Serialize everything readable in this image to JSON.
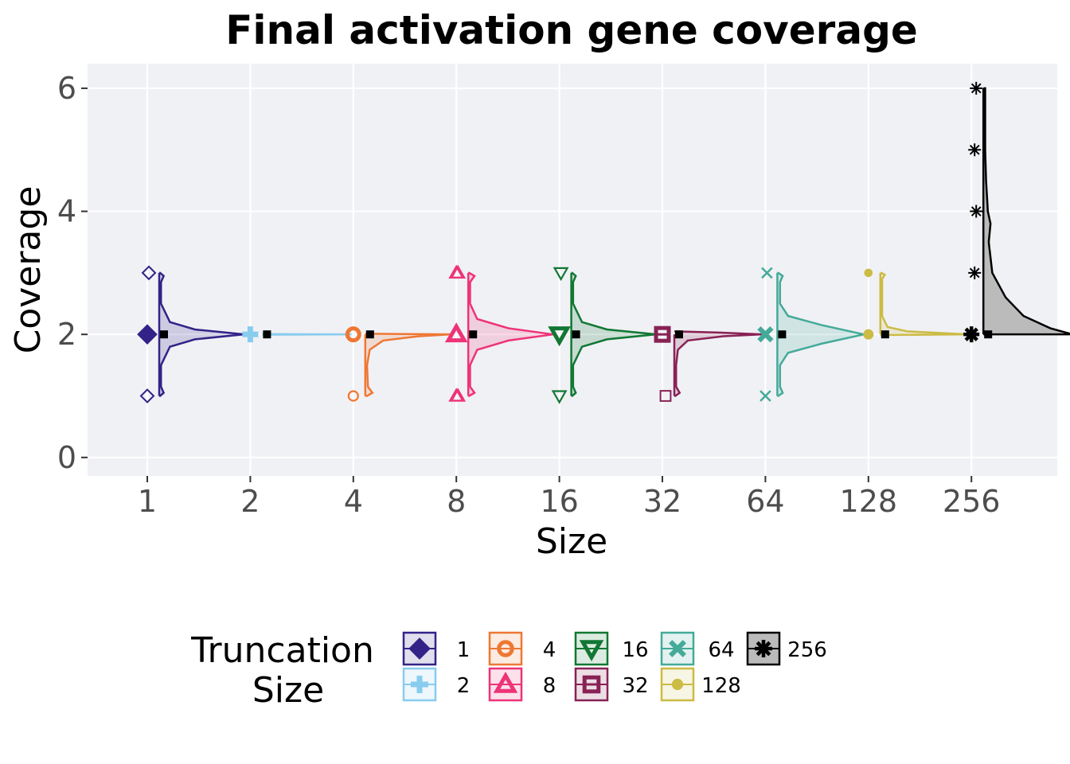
{
  "chart_data": {
    "type": "raincloud",
    "title": "Final activation gene coverage",
    "xlabel": "Size",
    "ylabel": "Coverage",
    "ylim": [
      -0.3,
      6.4
    ],
    "y_ticks": [
      0,
      2,
      4,
      6
    ],
    "categories": [
      "1",
      "2",
      "4",
      "8",
      "16",
      "32",
      "64",
      "128",
      "256"
    ],
    "grid": true,
    "legend": {
      "title_lines": [
        "Truncation",
        "Size"
      ],
      "placement": "bottom"
    },
    "series": [
      {
        "name": "1",
        "color": "#332288",
        "shape": "diamond",
        "median": 2,
        "min": 1,
        "max": 3,
        "outliers": [
          1,
          3
        ],
        "density": [
          [
            1,
            0.01
          ],
          [
            1.05,
            0.05
          ],
          [
            1.15,
            0.02
          ],
          [
            1.5,
            0.02
          ],
          [
            1.8,
            0.12
          ],
          [
            1.92,
            0.4
          ],
          [
            2,
            0.95
          ],
          [
            2.08,
            0.4
          ],
          [
            2.2,
            0.12
          ],
          [
            2.5,
            0.02
          ],
          [
            2.85,
            0.02
          ],
          [
            2.95,
            0.05
          ],
          [
            3,
            0.01
          ]
        ]
      },
      {
        "name": "2",
        "color": "#88CCEE",
        "shape": "plus",
        "median": 2,
        "min": 2,
        "max": 2,
        "outliers": [],
        "density": [
          [
            1.995,
            0
          ],
          [
            2,
            1
          ],
          [
            2.005,
            0
          ]
        ]
      },
      {
        "name": "4",
        "color": "#EE7733",
        "shape": "circle",
        "median": 2,
        "min": 1,
        "max": 2,
        "outliers": [
          1
        ],
        "density": [
          [
            1,
            0.02
          ],
          [
            1.05,
            0.08
          ],
          [
            1.15,
            0.03
          ],
          [
            1.5,
            0.02
          ],
          [
            1.75,
            0.05
          ],
          [
            1.9,
            0.2
          ],
          [
            1.97,
            0.6
          ],
          [
            2,
            0.96
          ],
          [
            2.01,
            0
          ]
        ]
      },
      {
        "name": "8",
        "color": "#EE3377",
        "shape": "triangle-up",
        "median": 2,
        "min": 1,
        "max": 3,
        "outliers": [
          1,
          1,
          3,
          3
        ],
        "density": [
          [
            1,
            0.01
          ],
          [
            1.05,
            0.07
          ],
          [
            1.15,
            0.02
          ],
          [
            1.5,
            0.02
          ],
          [
            1.75,
            0.1
          ],
          [
            1.9,
            0.45
          ],
          [
            2,
            0.95
          ],
          [
            2.1,
            0.45
          ],
          [
            2.25,
            0.1
          ],
          [
            2.5,
            0.02
          ],
          [
            2.85,
            0.02
          ],
          [
            2.95,
            0.07
          ],
          [
            3,
            0.01
          ]
        ]
      },
      {
        "name": "16",
        "color": "#117733",
        "shape": "triangle-down",
        "median": 2,
        "min": 1,
        "max": 3,
        "outliers": [
          1,
          3
        ],
        "density": [
          [
            1,
            0.01
          ],
          [
            1.05,
            0.05
          ],
          [
            1.15,
            0.02
          ],
          [
            1.5,
            0.02
          ],
          [
            1.8,
            0.12
          ],
          [
            1.92,
            0.4
          ],
          [
            2,
            0.95
          ],
          [
            2.08,
            0.4
          ],
          [
            2.2,
            0.12
          ],
          [
            2.5,
            0.02
          ],
          [
            2.85,
            0.02
          ],
          [
            2.95,
            0.05
          ],
          [
            3,
            0.01
          ]
        ]
      },
      {
        "name": "32",
        "color": "#882255",
        "shape": "square-cross",
        "median": 2,
        "min": 1,
        "max": 2,
        "outliers": [
          1
        ],
        "density": [
          [
            1,
            0.01
          ],
          [
            1.05,
            0.06
          ],
          [
            1.15,
            0.02
          ],
          [
            1.5,
            0.02
          ],
          [
            1.75,
            0.04
          ],
          [
            1.9,
            0.15
          ],
          [
            1.97,
            0.55
          ],
          [
            2,
            0.98
          ],
          [
            2.03,
            0.5
          ],
          [
            2.05,
            0
          ]
        ]
      },
      {
        "name": "64",
        "color": "#44AA99",
        "shape": "x",
        "median": 2,
        "min": 1,
        "max": 3,
        "outliers": [
          1,
          3
        ],
        "density": [
          [
            1,
            0.01
          ],
          [
            1.05,
            0.06
          ],
          [
            1.15,
            0.03
          ],
          [
            1.5,
            0.03
          ],
          [
            1.7,
            0.12
          ],
          [
            1.85,
            0.5
          ],
          [
            2,
            0.97
          ],
          [
            2.15,
            0.5
          ],
          [
            2.3,
            0.12
          ],
          [
            2.5,
            0.03
          ],
          [
            2.85,
            0.03
          ],
          [
            2.95,
            0.06
          ],
          [
            3,
            0.01
          ]
        ]
      },
      {
        "name": "128",
        "color": "#CCBB44",
        "shape": "circle-filled",
        "median": 2,
        "min": 2,
        "max": 3,
        "outliers": [
          3
        ],
        "density": [
          [
            1.99,
            0
          ],
          [
            2,
            0.97
          ],
          [
            2.05,
            0.3
          ],
          [
            2.12,
            0.08
          ],
          [
            2.3,
            0.02
          ],
          [
            2.9,
            0.02
          ],
          [
            2.97,
            0.05
          ],
          [
            3,
            0.01
          ]
        ]
      },
      {
        "name": "256",
        "color": "#000000",
        "fill": "#BBBBBB",
        "shape": "asterisk",
        "median": 2,
        "min": 2,
        "max": 6,
        "outliers": [
          3,
          4,
          5,
          6
        ],
        "density": [
          [
            2,
            1.0
          ],
          [
            2.1,
            0.75
          ],
          [
            2.3,
            0.45
          ],
          [
            2.6,
            0.25
          ],
          [
            3,
            0.1
          ],
          [
            3.5,
            0.06
          ],
          [
            3.8,
            0.08
          ],
          [
            4,
            0.05
          ],
          [
            4.5,
            0.03
          ],
          [
            5,
            0.02
          ],
          [
            5.5,
            0.02
          ],
          [
            6,
            0.02
          ]
        ]
      }
    ]
  }
}
